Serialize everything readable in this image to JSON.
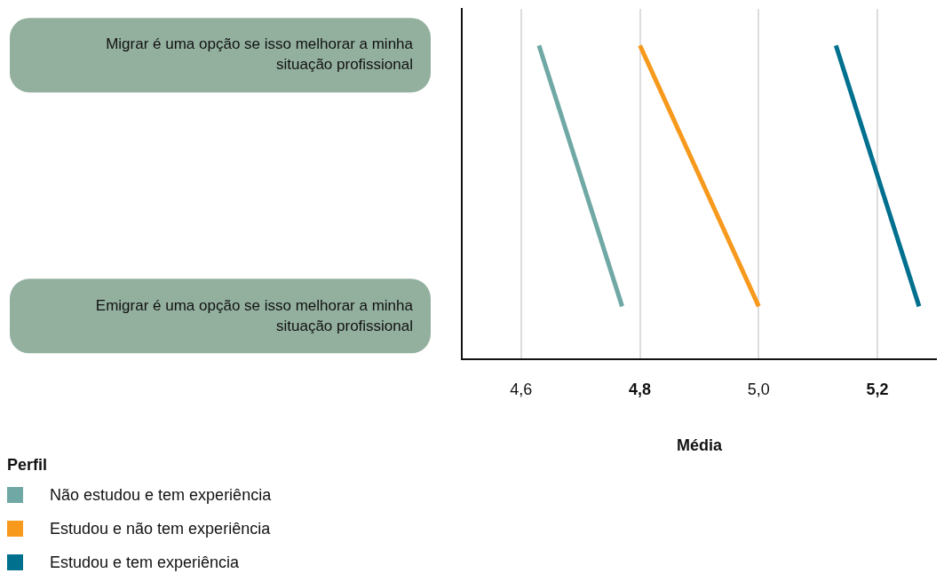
{
  "chart_data": {
    "type": "line",
    "orientation": "horizontal",
    "xlabel": "Média",
    "legend_title": "Perfil",
    "legend": "bottom left",
    "grid": "x",
    "marker": "none",
    "categories": [
      "Migrar é uma opção se isso melhorar a minha situação profissional",
      "Emigrar é uma opção se isso melhorar a minha situação profissional"
    ],
    "xlim": [
      4.5,
      5.3
    ],
    "xticks": [
      {
        "value": 4.6,
        "label": "4,6"
      },
      {
        "value": 4.8,
        "label": "4,8"
      },
      {
        "value": 5.0,
        "label": "5,0"
      },
      {
        "value": 5.2,
        "label": "5,2"
      }
    ],
    "series": [
      {
        "name": "Não estudou e tem experiência",
        "color": "#6fa8a4",
        "values": [
          4.63,
          4.77
        ]
      },
      {
        "name": "Estudou e não tem experiência",
        "color": "#f7991c",
        "values": [
          4.8,
          5.0
        ]
      },
      {
        "name": "Estudou e tem experiência",
        "color": "#00708f",
        "values": [
          5.13,
          5.27
        ]
      }
    ]
  }
}
